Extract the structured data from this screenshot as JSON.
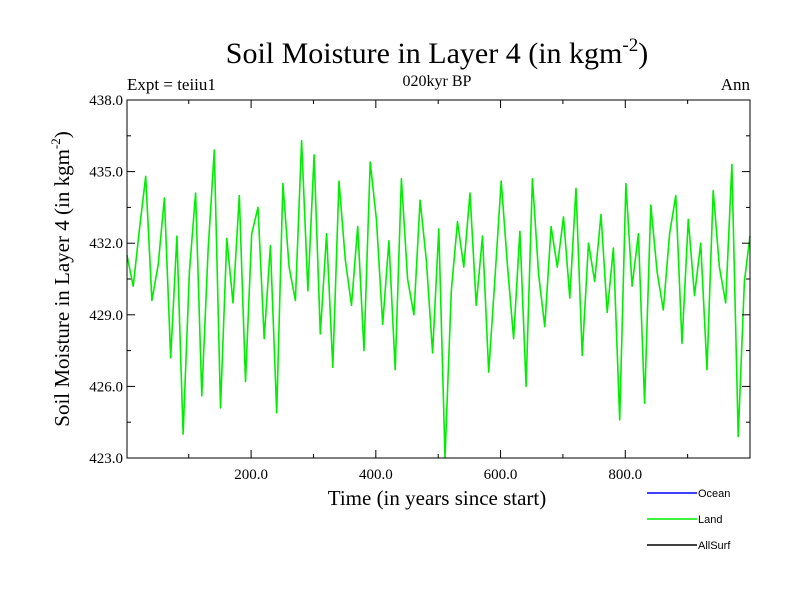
{
  "chart_data": {
    "type": "line",
    "title": "Soil Moisture in Layer 4 (in kgm",
    "title_sup": "-2",
    "title_close": ")",
    "subtitle": "020kyr BP",
    "left_label": "Expt = teiiu1",
    "right_label": "Ann",
    "xlabel": "Time (in years since start)",
    "ylabel": "Soil Moisture in Layer 4 (in kgm",
    "ylabel_sup": "-2",
    "ylabel_close": ")",
    "xlim": [
      1,
      1000
    ],
    "ylim": [
      423.0,
      438.0
    ],
    "x_ticks": [
      {
        "value": 200,
        "label": "200.0"
      },
      {
        "value": 400,
        "label": "400.0"
      },
      {
        "value": 600,
        "label": "600.0"
      },
      {
        "value": 800,
        "label": "800.0"
      }
    ],
    "y_ticks": [
      {
        "value": 423.0,
        "label": "423.0"
      },
      {
        "value": 426.0,
        "label": "426.0"
      },
      {
        "value": 429.0,
        "label": "429.0"
      },
      {
        "value": 432.0,
        "label": "432.0"
      },
      {
        "value": 435.0,
        "label": "435.0"
      },
      {
        "value": 438.0,
        "label": "438.0"
      }
    ],
    "legend": [
      {
        "name": "Ocean",
        "color": "#0000ff"
      },
      {
        "name": "Land",
        "color": "#00ee00"
      },
      {
        "name": "AllSurf",
        "color": "#000000"
      }
    ],
    "series": [
      {
        "name": "Land",
        "color": "#00ee00",
        "x": [
          1,
          11,
          21,
          31,
          41,
          51,
          61,
          71,
          81,
          91,
          101,
          111,
          121,
          131,
          141,
          151,
          161,
          171,
          181,
          191,
          201,
          211,
          221,
          231,
          241,
          251,
          261,
          271,
          281,
          291,
          301,
          311,
          321,
          331,
          341,
          351,
          361,
          371,
          381,
          391,
          401,
          411,
          421,
          431,
          441,
          451,
          461,
          471,
          481,
          491,
          501,
          511,
          521,
          531,
          541,
          551,
          561,
          571,
          581,
          591,
          601,
          611,
          621,
          631,
          641,
          651,
          661,
          671,
          681,
          691,
          701,
          711,
          721,
          731,
          741,
          751,
          761,
          771,
          781,
          791,
          801,
          811,
          821,
          831,
          841,
          851,
          861,
          871,
          881,
          891,
          901,
          911,
          921,
          931,
          941,
          951,
          961,
          971,
          981,
          991,
          1000
        ],
        "y": [
          431.5,
          430.2,
          432.6,
          434.8,
          429.6,
          431.1,
          433.9,
          427.2,
          432.3,
          424.0,
          430.8,
          434.1,
          425.6,
          431.7,
          435.9,
          425.1,
          432.2,
          429.5,
          434.0,
          426.2,
          432.4,
          433.5,
          428.0,
          431.9,
          424.9,
          434.5,
          431.0,
          429.6,
          436.3,
          430.0,
          435.7,
          428.2,
          432.4,
          426.8,
          434.6,
          431.3,
          429.4,
          432.7,
          427.5,
          435.4,
          433.0,
          428.6,
          432.1,
          426.7,
          434.7,
          430.5,
          429.0,
          433.8,
          431.3,
          427.4,
          432.6,
          423.0,
          430.0,
          432.9,
          431.0,
          434.1,
          429.4,
          432.3,
          426.6,
          430.5,
          434.6,
          431.1,
          428.0,
          432.5,
          426.0,
          434.7,
          430.7,
          428.5,
          432.7,
          431.0,
          433.1,
          429.7,
          434.3,
          427.3,
          432.0,
          430.4,
          433.2,
          429.1,
          431.8,
          424.6,
          434.5,
          430.2,
          432.4,
          425.3,
          433.6,
          430.8,
          429.2,
          432.4,
          434.0,
          427.8,
          433.0,
          429.8,
          432.0,
          426.7,
          434.2,
          431.0,
          429.5,
          435.3,
          423.9,
          430.4,
          432.3
        ]
      }
    ]
  }
}
